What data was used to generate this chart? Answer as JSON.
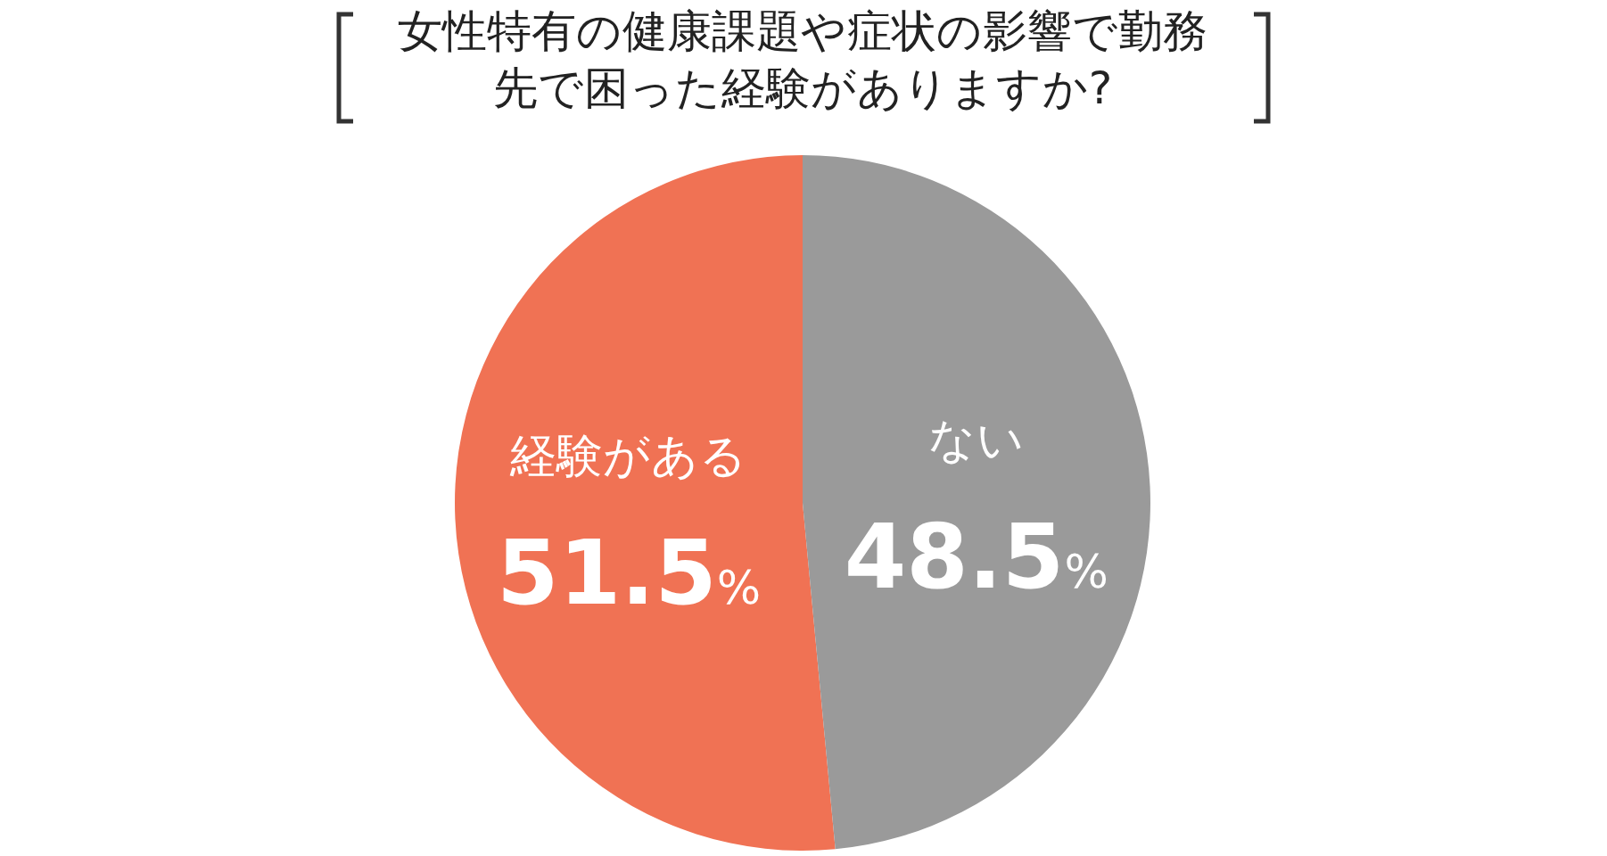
{
  "chart_data": {
    "type": "pie",
    "title": "女性特有の健康課題や症状の影響で勤務先で困った経験がありますか?",
    "categories": [
      "経験がある",
      "ない"
    ],
    "values": [
      51.5,
      48.5
    ],
    "colors": [
      "#f07254",
      "#9a9a9a"
    ],
    "value_labels": [
      "51.5%",
      "48.5%"
    ],
    "legend": false
  }
}
